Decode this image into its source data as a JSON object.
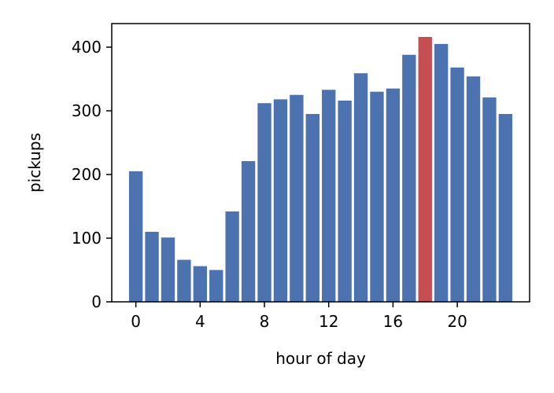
{
  "chart_data": {
    "type": "bar",
    "title": "",
    "xlabel": "hour of day",
    "ylabel": "pickups",
    "categories": [
      0,
      1,
      2,
      3,
      4,
      5,
      6,
      7,
      8,
      9,
      10,
      11,
      12,
      13,
      14,
      15,
      16,
      17,
      18,
      19,
      20,
      21,
      22,
      23
    ],
    "values": [
      205,
      110,
      101,
      66,
      56,
      50,
      142,
      221,
      312,
      318,
      325,
      295,
      333,
      316,
      359,
      330,
      335,
      388,
      416,
      405,
      368,
      354,
      321,
      295
    ],
    "highlight_index": 18,
    "colors": {
      "bar": "#4c72b0",
      "highlight": "#c44e52",
      "axis": "#000000"
    },
    "xlim": [
      -1.5,
      24.5
    ],
    "ylim": [
      0,
      437
    ],
    "xticks": [
      0,
      4,
      8,
      12,
      16,
      20
    ],
    "yticks": [
      0,
      100,
      200,
      300,
      400
    ],
    "grid": false,
    "legend": "none"
  }
}
